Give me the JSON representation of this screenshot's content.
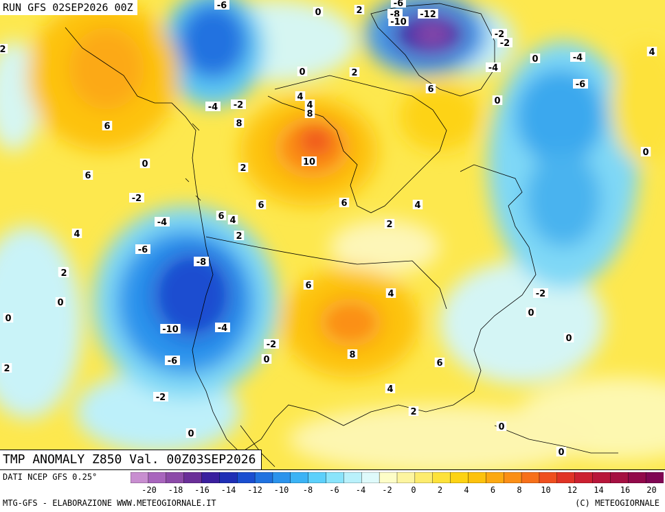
{
  "header": {
    "run_title": "RUN GFS 02SEP2026 00Z"
  },
  "map_title": "TMP ANOMALY Z850 Val. 00Z03SEP2026",
  "footer": {
    "data_source": "DATI NCEP GFS 0.25°",
    "credit": "MTG-GFS - ELABORAZIONE WWW.METEOGIORNALE.IT",
    "copyright": "(C) METEOGIORNALE"
  },
  "colorbar": {
    "ticks": [
      "-20",
      "-18",
      "-16",
      "-14",
      "-12",
      "-10",
      "-8",
      "-6",
      "-4",
      "-2",
      "0",
      "2",
      "4",
      "6",
      "8",
      "10",
      "12",
      "14",
      "16",
      "20"
    ],
    "colors": [
      "#c88ed0",
      "#a865bd",
      "#8c4aa8",
      "#6a2e98",
      "#3a1f9e",
      "#1f2fb5",
      "#1a4ed0",
      "#2072e0",
      "#2b93ec",
      "#3bb3f5",
      "#5cd0fb",
      "#8ae4fb",
      "#b9f1fb",
      "#dffafb",
      "#fdfdc8",
      "#fdf5a0",
      "#fdec6e",
      "#fde23a",
      "#fdd314",
      "#fdc20d",
      "#fca912",
      "#fb8f16",
      "#f7701a",
      "#ef4f1f",
      "#e03326",
      "#cc2030",
      "#b8163a",
      "#a51042",
      "#92094a",
      "#800653"
    ]
  },
  "contour_labels": [
    {
      "text": "-6"
    },
    {
      "text": "0"
    },
    {
      "text": "2"
    },
    {
      "text": "-6"
    },
    {
      "text": "-12"
    },
    {
      "text": "-8"
    },
    {
      "text": "-10"
    },
    {
      "text": "-2"
    },
    {
      "text": "-2"
    },
    {
      "text": "4"
    },
    {
      "text": "0"
    },
    {
      "text": "-4"
    },
    {
      "text": "2"
    },
    {
      "text": "0"
    },
    {
      "text": "2"
    },
    {
      "text": "-4"
    },
    {
      "text": "-6"
    },
    {
      "text": "6"
    },
    {
      "text": "4"
    },
    {
      "text": "0"
    },
    {
      "text": "-4"
    },
    {
      "text": "-2"
    },
    {
      "text": "4"
    },
    {
      "text": "6"
    },
    {
      "text": "8"
    },
    {
      "text": "8"
    },
    {
      "text": "0"
    },
    {
      "text": "10"
    },
    {
      "text": "2"
    },
    {
      "text": "6"
    },
    {
      "text": "0"
    },
    {
      "text": "2"
    },
    {
      "text": "6"
    },
    {
      "text": "6"
    },
    {
      "text": "4"
    },
    {
      "text": "-2"
    },
    {
      "text": "-4"
    },
    {
      "text": "6"
    },
    {
      "text": "4"
    },
    {
      "text": "2"
    },
    {
      "text": "2"
    },
    {
      "text": "4"
    },
    {
      "text": "-6"
    },
    {
      "text": "2"
    },
    {
      "text": "-8"
    },
    {
      "text": "6"
    },
    {
      "text": "4"
    },
    {
      "text": "-2"
    },
    {
      "text": "0"
    },
    {
      "text": "0"
    },
    {
      "text": "0"
    },
    {
      "text": "-10"
    },
    {
      "text": "-4"
    },
    {
      "text": "0"
    },
    {
      "text": "-2"
    },
    {
      "text": "0"
    },
    {
      "text": "8"
    },
    {
      "text": "6"
    },
    {
      "text": "-6"
    },
    {
      "text": "2"
    },
    {
      "text": "4"
    },
    {
      "text": "-2"
    },
    {
      "text": "2"
    },
    {
      "text": "0"
    },
    {
      "text": "0"
    },
    {
      "text": "0"
    }
  ]
}
